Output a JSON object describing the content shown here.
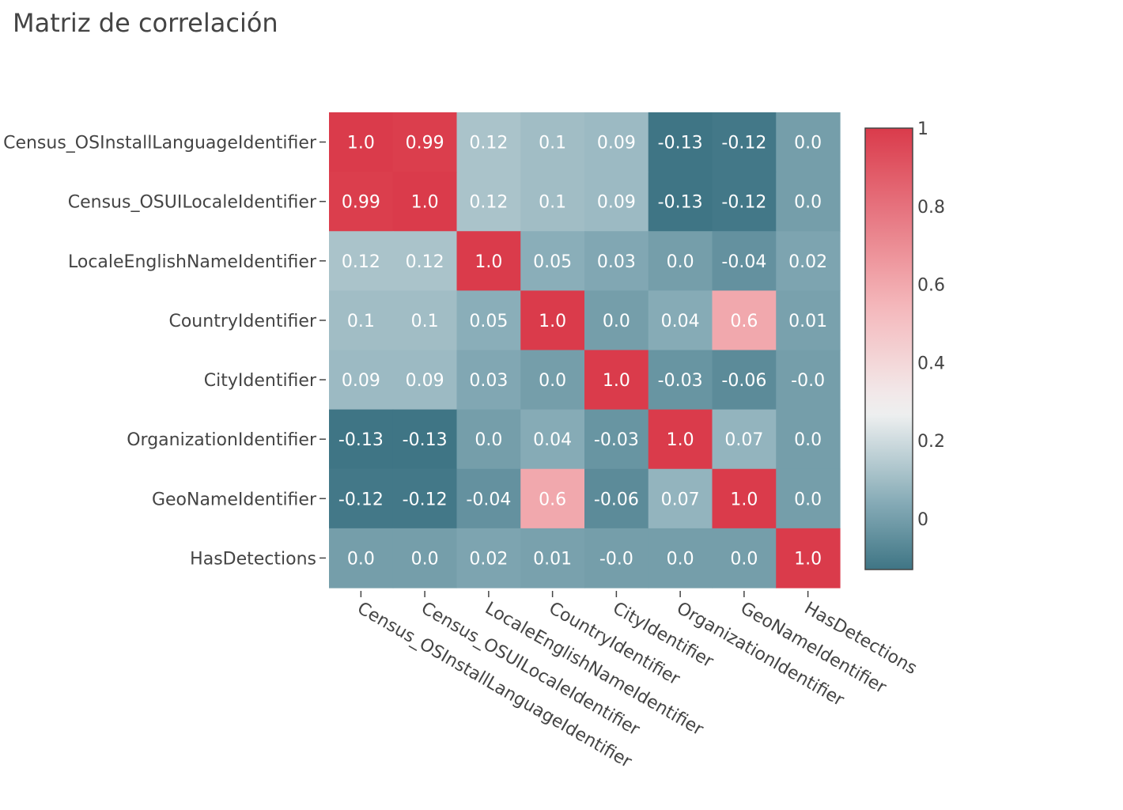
{
  "chart_data": {
    "type": "heatmap",
    "title": "Matriz de correlación",
    "x_labels": [
      "Census_OSInstallLanguageIdentifier",
      "Census_OSUILocaleIdentifier",
      "LocaleEnglishNameIdentifier",
      "CountryIdentifier",
      "CityIdentifier",
      "OrganizationIdentifier",
      "GeoNameIdentifier",
      "HasDetections"
    ],
    "y_labels": [
      "Census_OSInstallLanguageIdentifier",
      "Census_OSUILocaleIdentifier",
      "LocaleEnglishNameIdentifier",
      "CountryIdentifier",
      "CityIdentifier",
      "OrganizationIdentifier",
      "GeoNameIdentifier",
      "HasDetections"
    ],
    "values": [
      [
        1.0,
        0.99,
        0.12,
        0.1,
        0.09,
        -0.13,
        -0.12,
        0.0
      ],
      [
        0.99,
        1.0,
        0.12,
        0.1,
        0.09,
        -0.13,
        -0.12,
        0.0
      ],
      [
        0.12,
        0.12,
        1.0,
        0.05,
        0.03,
        0.0,
        -0.04,
        0.02
      ],
      [
        0.1,
        0.1,
        0.05,
        1.0,
        0.0,
        0.04,
        0.6,
        0.01
      ],
      [
        0.09,
        0.09,
        0.03,
        0.0,
        1.0,
        -0.03,
        -0.06,
        -0.0
      ],
      [
        -0.13,
        -0.13,
        0.0,
        0.04,
        -0.03,
        1.0,
        0.07,
        0.0
      ],
      [
        -0.12,
        -0.12,
        -0.04,
        0.6,
        -0.06,
        0.07,
        1.0,
        0.0
      ],
      [
        0.0,
        0.0,
        0.02,
        0.01,
        -0.0,
        0.0,
        0.0,
        1.0
      ]
    ],
    "cell_text": [
      [
        "1.0",
        "0.99",
        "0.12",
        "0.1",
        "0.09",
        "-0.13",
        "-0.12",
        "0.0"
      ],
      [
        "0.99",
        "1.0",
        "0.12",
        "0.1",
        "0.09",
        "-0.13",
        "-0.12",
        "0.0"
      ],
      [
        "0.12",
        "0.12",
        "1.0",
        "0.05",
        "0.03",
        "0.0",
        "-0.04",
        "0.02"
      ],
      [
        "0.1",
        "0.1",
        "0.05",
        "1.0",
        "0.0",
        "0.04",
        "0.6",
        "0.01"
      ],
      [
        "0.09",
        "0.09",
        "0.03",
        "0.0",
        "1.0",
        "-0.03",
        "-0.06",
        "-0.0"
      ],
      [
        "-0.13",
        "-0.13",
        "0.0",
        "0.04",
        "-0.03",
        "1.0",
        "0.07",
        "0.0"
      ],
      [
        "-0.12",
        "-0.12",
        "-0.04",
        "0.6",
        "-0.06",
        "0.07",
        "1.0",
        "0.0"
      ],
      [
        "0.0",
        "0.0",
        "0.02",
        "0.01",
        "-0.0",
        "0.0",
        "0.0",
        "1.0"
      ]
    ],
    "colorscale": [
      [
        0.0,
        "#3f7585"
      ],
      [
        0.16,
        "#8aaeb9"
      ],
      [
        0.36,
        "#f2f2f2"
      ],
      [
        0.6,
        "#f4b6ba"
      ],
      [
        1.0,
        "#da3b4b"
      ]
    ],
    "zmin": -0.13,
    "zmax": 1.0,
    "colorbar": {
      "ticks": [
        0,
        0.2,
        0.4,
        0.6,
        0.8,
        1
      ],
      "tick_labels": [
        "0",
        "0.2",
        "0.4",
        "0.6",
        "0.8",
        "1"
      ]
    },
    "text_color": "#ffffff"
  }
}
